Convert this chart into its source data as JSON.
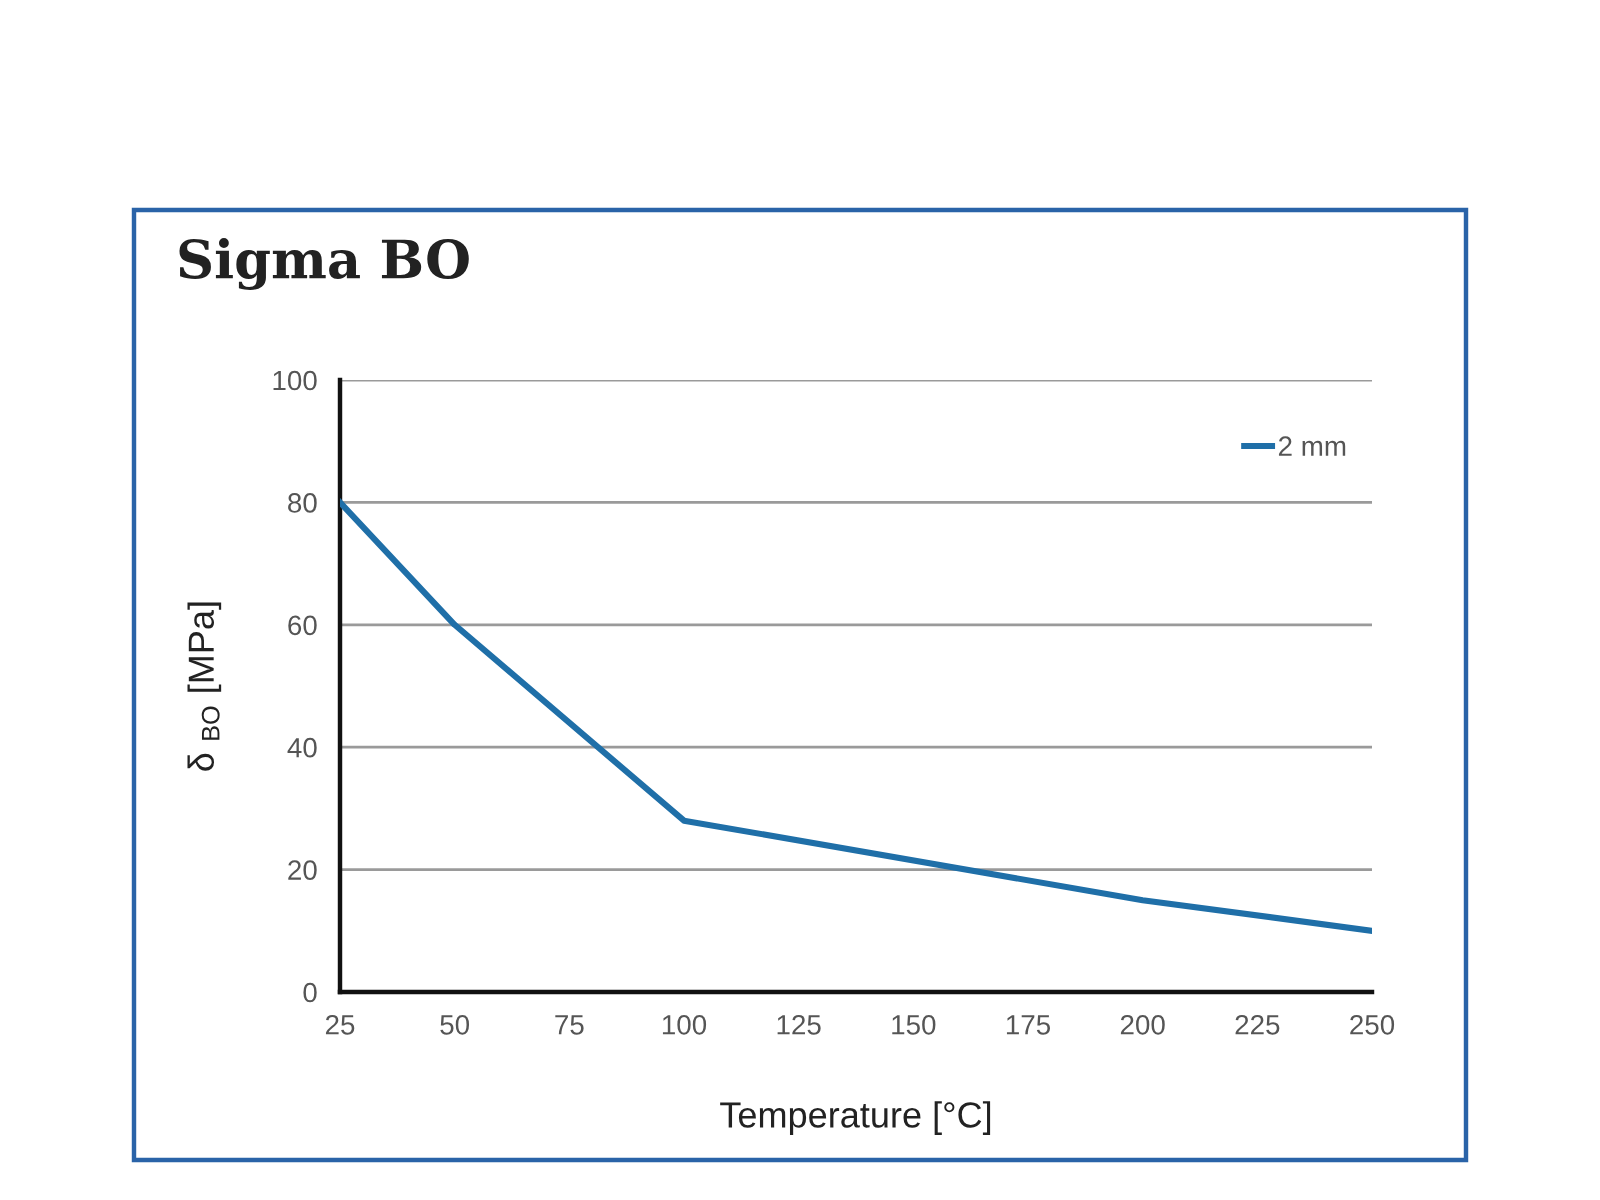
{
  "chart_data": {
    "type": "line",
    "title": "Sigma BO",
    "xlabel": "Temperature [°C]",
    "ylabel": "δ $_{BO}$ [MPa]",
    "x": [
      25,
      50,
      100,
      200,
      250
    ],
    "series": [
      {
        "name": "2 mm",
        "color": "#1f6fa8",
        "values": [
          80,
          60,
          28,
          15,
          10
        ]
      }
    ],
    "xlim": [
      25,
      250
    ],
    "xticks": [
      25,
      50,
      75,
      100,
      125,
      150,
      175,
      200,
      225,
      250
    ],
    "ylim": [
      0,
      100
    ],
    "yticks": [
      0,
      20,
      40,
      60,
      80,
      100
    ],
    "grid": "y",
    "legend": "top right",
    "line_style": "solid"
  }
}
